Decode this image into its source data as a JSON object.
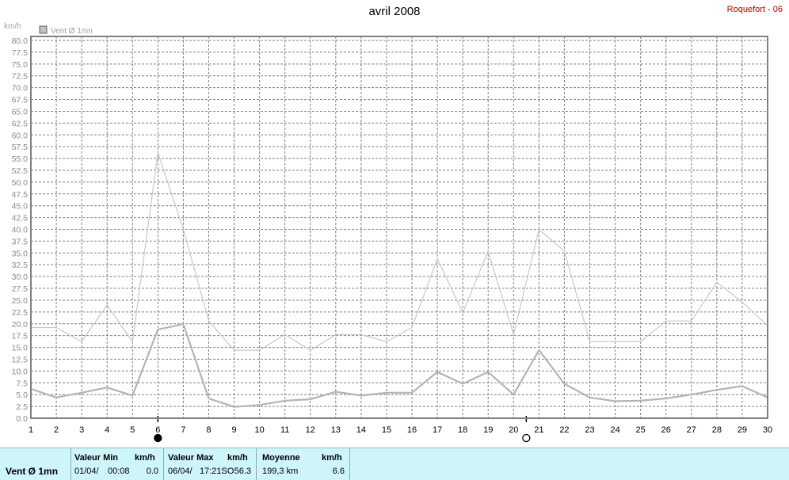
{
  "title": "avril 2008",
  "station": "Roquefort - 06",
  "chart_data": {
    "type": "line",
    "y_unit_label": "km/h",
    "legend": "Vent Ø 1mn",
    "ylim": [
      0,
      80
    ],
    "ytick_step": 2.5,
    "x": [
      1,
      2,
      3,
      4,
      5,
      6,
      7,
      8,
      9,
      10,
      11,
      12,
      13,
      14,
      15,
      16,
      17,
      18,
      19,
      20,
      21,
      22,
      23,
      24,
      25,
      26,
      27,
      28,
      29,
      30
    ],
    "grid": true,
    "series": [
      {
        "name": "max",
        "color": "#c8c8c8",
        "values": [
          19.2,
          19.2,
          16.2,
          24.0,
          16.2,
          56.3,
          40.0,
          20.6,
          14.4,
          14.4,
          17.7,
          14.4,
          17.7,
          17.7,
          16.2,
          19.2,
          33.8,
          22.3,
          35.4,
          17.7,
          40.0,
          35.4,
          16.2,
          16.2,
          16.2,
          20.6,
          20.6,
          28.8,
          24.6,
          19.6
        ]
      },
      {
        "name": "avg",
        "color": "#b4b4b4",
        "values": [
          6.2,
          4.4,
          5.4,
          6.5,
          4.8,
          18.8,
          19.9,
          4.2,
          2.4,
          2.8,
          3.7,
          4.0,
          5.6,
          4.8,
          5.4,
          5.4,
          9.8,
          7.3,
          9.8,
          5.0,
          14.4,
          7.3,
          4.4,
          3.6,
          3.7,
          4.2,
          5.0,
          6.0,
          6.8,
          4.4
        ]
      }
    ],
    "markers": [
      {
        "day": 6,
        "symbol": "filled-circle"
      },
      {
        "day": 20.5,
        "symbol": "open-circle"
      }
    ]
  },
  "stats": {
    "name": "Vent Ø 1mn",
    "min": {
      "header": "Valeur Min",
      "unit": "km/h",
      "date": "01/04/",
      "time": "00:08",
      "value": "0.0"
    },
    "max": {
      "header": "Valeur Max",
      "unit": "km/h",
      "date": "06/04/",
      "time": "17:21SO",
      "value": "56.3"
    },
    "avg": {
      "header": "Moyenne",
      "unit": "km/h",
      "distance": "199,3 km",
      "value": "6.6"
    }
  }
}
